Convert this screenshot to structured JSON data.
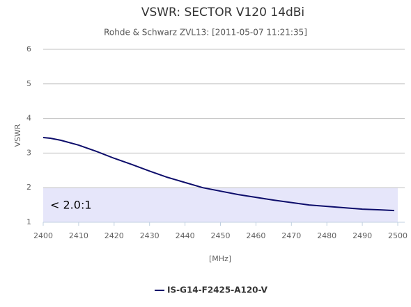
{
  "chart_data": {
    "type": "line",
    "title": "VSWR: SECTOR V120 14dBi",
    "subtitle": "Rohde & Schwarz ZVL13: [2011-05-07 11:21:35]",
    "x_label": "[MHz]",
    "y_label": "VSWR",
    "x": [
      2400,
      2402,
      2405,
      2410,
      2415,
      2420,
      2425,
      2430,
      2435,
      2440,
      2445,
      2450,
      2455,
      2460,
      2465,
      2470,
      2475,
      2480,
      2485,
      2490,
      2495,
      2499
    ],
    "series": [
      {
        "name": "IS-G14-F2425-A120-V",
        "color": "#0d0d6b",
        "values": [
          3.45,
          3.43,
          3.37,
          3.23,
          3.05,
          2.85,
          2.67,
          2.48,
          2.3,
          2.15,
          2.0,
          1.9,
          1.8,
          1.72,
          1.64,
          1.57,
          1.5,
          1.46,
          1.42,
          1.38,
          1.36,
          1.34
        ]
      }
    ],
    "xlim": [
      2400,
      2500
    ],
    "xticks": [
      2400,
      2410,
      2420,
      2430,
      2440,
      2450,
      2460,
      2470,
      2480,
      2490,
      2500
    ],
    "ylim": [
      1,
      6
    ],
    "yticks": [
      1,
      2,
      3,
      4,
      5,
      6
    ],
    "grid": true,
    "plot_band": {
      "from": 1,
      "to": 2,
      "label": "< 2.0:1",
      "color": "#e6e6fa"
    },
    "legend": "bottom"
  }
}
